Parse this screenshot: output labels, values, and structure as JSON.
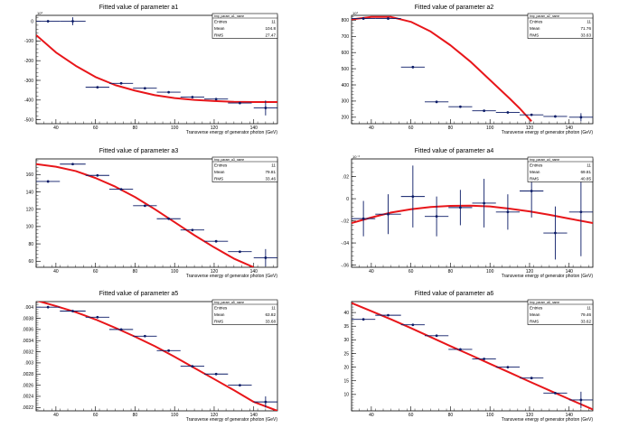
{
  "xlabel": "Transverse energy of generator photon (GeV)",
  "stats_labels": [
    "Entries",
    "Mean",
    "RMS"
  ],
  "colors": {
    "fit": "#e8161a",
    "points": "#0a1a66",
    "frame": "#000000"
  },
  "chart_data": [
    {
      "type": "scatter",
      "title": "Fitted value of parameter a1",
      "stats": {
        "title": "tmp_param_a1_name",
        "entries": "11",
        "mean": "104.8",
        "rms": "27.47"
      },
      "xlim": [
        30,
        152
      ],
      "ylim": [
        -520,
        30
      ],
      "exponent": "10³",
      "yticks": [
        0,
        -100,
        -200,
        -300,
        -400,
        -500
      ],
      "xticks": [
        40,
        60,
        80,
        100,
        120,
        140
      ],
      "points": [
        {
          "x": 36,
          "xerr": 6,
          "y": 0,
          "yerr": 0
        },
        {
          "x": 48.5,
          "xerr": 6.5,
          "y": 0,
          "yerr": 20
        },
        {
          "x": 61,
          "xerr": 6,
          "y": -335,
          "yerr": 0
        },
        {
          "x": 73,
          "xerr": 6,
          "y": -315,
          "yerr": 0
        },
        {
          "x": 85,
          "xerr": 6,
          "y": -340,
          "yerr": 0
        },
        {
          "x": 97,
          "xerr": 6,
          "y": -360,
          "yerr": 0
        },
        {
          "x": 109,
          "xerr": 6,
          "y": -385,
          "yerr": 0
        },
        {
          "x": 121,
          "xerr": 6,
          "y": -395,
          "yerr": 0
        },
        {
          "x": 133,
          "xerr": 6,
          "y": -415,
          "yerr": 0
        },
        {
          "x": 146,
          "xerr": 6,
          "y": -440,
          "yerr": 38
        }
      ],
      "fit": [
        [
          30,
          -70
        ],
        [
          40,
          -158
        ],
        [
          50,
          -226
        ],
        [
          60,
          -283
        ],
        [
          70,
          -324
        ],
        [
          80,
          -352
        ],
        [
          90,
          -375
        ],
        [
          100,
          -390
        ],
        [
          110,
          -399
        ],
        [
          120,
          -405
        ],
        [
          130,
          -409
        ],
        [
          140,
          -410
        ],
        [
          152,
          -410
        ]
      ]
    },
    {
      "type": "scatter",
      "title": "Fitted value of parameter a2",
      "stats": {
        "title": "tmp_param_a2_name",
        "entries": "11",
        "mean": "71.76",
        "rms": "33.63"
      },
      "xlim": [
        30,
        152
      ],
      "ylim": [
        160,
        830
      ],
      "exponent": "10³",
      "yticks": [
        200,
        300,
        400,
        500,
        600,
        700,
        800
      ],
      "xticks": [
        40,
        60,
        80,
        100,
        120,
        140
      ],
      "points": [
        {
          "x": 36,
          "xerr": 6,
          "y": 810,
          "yerr": 0
        },
        {
          "x": 48.5,
          "xerr": 6.5,
          "y": 810,
          "yerr": 0
        },
        {
          "x": 61,
          "xerr": 6,
          "y": 510,
          "yerr": 0
        },
        {
          "x": 73,
          "xerr": 6,
          "y": 295,
          "yerr": 0
        },
        {
          "x": 85,
          "xerr": 6,
          "y": 265,
          "yerr": 0
        },
        {
          "x": 97,
          "xerr": 6,
          "y": 240,
          "yerr": 0
        },
        {
          "x": 109,
          "xerr": 6,
          "y": 230,
          "yerr": 0
        },
        {
          "x": 121,
          "xerr": 6,
          "y": 215,
          "yerr": 0
        },
        {
          "x": 133,
          "xerr": 6,
          "y": 205,
          "yerr": 0
        },
        {
          "x": 146,
          "xerr": 6,
          "y": 200,
          "yerr": 25
        }
      ],
      "fit": [
        [
          30,
          805
        ],
        [
          40,
          820
        ],
        [
          50,
          820
        ],
        [
          60,
          790
        ],
        [
          70,
          730
        ],
        [
          80,
          645
        ],
        [
          90,
          545
        ],
        [
          100,
          430
        ],
        [
          110,
          315
        ],
        [
          115,
          255
        ],
        [
          121,
          175
        ]
      ]
    },
    {
      "type": "scatter",
      "title": "Fitted value of parameter a3",
      "stats": {
        "title": "tmp_param_a3_name",
        "entries": "11",
        "mean": "79.81",
        "rms": "33.46"
      },
      "xlim": [
        30,
        152
      ],
      "ylim": [
        53,
        178
      ],
      "exponent": "",
      "yticks": [
        60,
        80,
        100,
        120,
        140,
        160
      ],
      "xticks": [
        40,
        60,
        80,
        100,
        120,
        140
      ],
      "points": [
        {
          "x": 36,
          "xerr": 6,
          "y": 152,
          "yerr": 0
        },
        {
          "x": 48.5,
          "xerr": 6.5,
          "y": 172,
          "yerr": 0
        },
        {
          "x": 61,
          "xerr": 6,
          "y": 159,
          "yerr": 0
        },
        {
          "x": 73,
          "xerr": 6,
          "y": 143,
          "yerr": 0
        },
        {
          "x": 85,
          "xerr": 6,
          "y": 124,
          "yerr": 0
        },
        {
          "x": 97,
          "xerr": 6,
          "y": 109,
          "yerr": 0
        },
        {
          "x": 109,
          "xerr": 6,
          "y": 96,
          "yerr": 0
        },
        {
          "x": 121,
          "xerr": 6,
          "y": 83,
          "yerr": 0
        },
        {
          "x": 133,
          "xerr": 6,
          "y": 71,
          "yerr": 0
        },
        {
          "x": 146,
          "xerr": 6,
          "y": 64,
          "yerr": 10
        }
      ],
      "fit": [
        [
          30,
          172
        ],
        [
          40,
          169
        ],
        [
          50,
          164
        ],
        [
          60,
          156
        ],
        [
          70,
          146
        ],
        [
          80,
          134
        ],
        [
          90,
          120
        ],
        [
          100,
          105
        ],
        [
          110,
          90
        ],
        [
          120,
          76
        ],
        [
          130,
          63
        ],
        [
          140,
          53
        ]
      ]
    },
    {
      "type": "scatter",
      "title": "Fitted value of parameter a4",
      "stats": {
        "title": "tmp_param_a4_name",
        "entries": "11",
        "mean": "69.81",
        "rms": "40.85"
      },
      "xlim": [
        30,
        152
      ],
      "ylim": [
        -0.062,
        0.036
      ],
      "exponent": "10⁻³",
      "yticks": [
        -0.06,
        -0.04,
        -0.02,
        0,
        0.02
      ],
      "xticks": [
        40,
        60,
        80,
        100,
        120,
        140
      ],
      "points": [
        {
          "x": 36,
          "xerr": 6,
          "y": -0.018,
          "yerr": 0.016
        },
        {
          "x": 48.5,
          "xerr": 6.5,
          "y": -0.014,
          "yerr": 0.018
        },
        {
          "x": 61,
          "xerr": 6,
          "y": 0.002,
          "yerr": 0.028
        },
        {
          "x": 73,
          "xerr": 6,
          "y": -0.016,
          "yerr": 0.018
        },
        {
          "x": 85,
          "xerr": 6,
          "y": -0.008,
          "yerr": 0.016
        },
        {
          "x": 97,
          "xerr": 6,
          "y": -0.004,
          "yerr": 0.022
        },
        {
          "x": 109,
          "xerr": 6,
          "y": -0.012,
          "yerr": 0.016
        },
        {
          "x": 121,
          "xerr": 6,
          "y": 0.007,
          "yerr": 0.024
        },
        {
          "x": 133,
          "xerr": 6,
          "y": -0.031,
          "yerr": 0.024
        },
        {
          "x": 146,
          "xerr": 6,
          "y": -0.012,
          "yerr": 0.04
        }
      ],
      "fit": [
        [
          30,
          -0.022
        ],
        [
          40,
          -0.017
        ],
        [
          50,
          -0.0125
        ],
        [
          60,
          -0.0095
        ],
        [
          70,
          -0.0075
        ],
        [
          80,
          -0.0065
        ],
        [
          90,
          -0.0063
        ],
        [
          100,
          -0.007
        ],
        [
          110,
          -0.009
        ],
        [
          120,
          -0.0115
        ],
        [
          130,
          -0.0145
        ],
        [
          140,
          -0.018
        ],
        [
          152,
          -0.022
        ]
      ]
    },
    {
      "type": "scatter",
      "title": "Fitted value of parameter a5",
      "stats": {
        "title": "tmp_param_a5_name",
        "entries": "11",
        "mean": "63.82",
        "rms": "33.68"
      },
      "xlim": [
        30,
        152
      ],
      "ylim": [
        0.00214,
        0.0041
      ],
      "exponent": "",
      "yticks": [
        0.0022,
        0.0024,
        0.0026,
        0.0028,
        0.003,
        0.0032,
        0.0034,
        0.0036,
        0.0038,
        0.004
      ],
      "xticks": [
        40,
        60,
        80,
        100,
        120,
        140
      ],
      "points": [
        {
          "x": 36,
          "xerr": 6,
          "y": 0.004,
          "yerr": 0
        },
        {
          "x": 48.5,
          "xerr": 6.5,
          "y": 0.00393,
          "yerr": 0
        },
        {
          "x": 61,
          "xerr": 6,
          "y": 0.00382,
          "yerr": 0
        },
        {
          "x": 73,
          "xerr": 6,
          "y": 0.0036,
          "yerr": 0
        },
        {
          "x": 85,
          "xerr": 6,
          "y": 0.00348,
          "yerr": 0
        },
        {
          "x": 97,
          "xerr": 6,
          "y": 0.00322,
          "yerr": 0
        },
        {
          "x": 109,
          "xerr": 6,
          "y": 0.00294,
          "yerr": 0
        },
        {
          "x": 121,
          "xerr": 6,
          "y": 0.0028,
          "yerr": 0
        },
        {
          "x": 133,
          "xerr": 6,
          "y": 0.0026,
          "yerr": 0
        },
        {
          "x": 146,
          "xerr": 6,
          "y": 0.0023,
          "yerr": 0.0001
        }
      ],
      "fit": [
        [
          30,
          0.00412
        ],
        [
          40,
          0.00402
        ],
        [
          50,
          0.00391
        ],
        [
          60,
          0.00378
        ],
        [
          70,
          0.00363
        ],
        [
          80,
          0.00347
        ],
        [
          90,
          0.0033
        ],
        [
          100,
          0.00311
        ],
        [
          110,
          0.00291
        ],
        [
          120,
          0.00271
        ],
        [
          130,
          0.00251
        ],
        [
          140,
          0.0023
        ],
        [
          152,
          0.00214
        ]
      ]
    },
    {
      "type": "scatter",
      "title": "Fitted value of parameter a6",
      "stats": {
        "title": "tmp_param_a6_name",
        "entries": "11",
        "mean": "79.46",
        "rms": "33.62"
      },
      "xlim": [
        30,
        152
      ],
      "ylim": [
        4,
        44
      ],
      "exponent": "",
      "yticks": [
        10,
        15,
        20,
        25,
        30,
        35,
        40
      ],
      "xticks": [
        40,
        60,
        80,
        100,
        120,
        140
      ],
      "points": [
        {
          "x": 36,
          "xerr": 6,
          "y": 37.5,
          "yerr": 0
        },
        {
          "x": 48.5,
          "xerr": 6.5,
          "y": 39,
          "yerr": 0
        },
        {
          "x": 61,
          "xerr": 6,
          "y": 35.5,
          "yerr": 0
        },
        {
          "x": 73,
          "xerr": 6,
          "y": 31.5,
          "yerr": 0
        },
        {
          "x": 85,
          "xerr": 6,
          "y": 26.5,
          "yerr": 0
        },
        {
          "x": 97,
          "xerr": 6,
          "y": 23,
          "yerr": 0
        },
        {
          "x": 109,
          "xerr": 6,
          "y": 20,
          "yerr": 0
        },
        {
          "x": 121,
          "xerr": 6,
          "y": 16,
          "yerr": 0
        },
        {
          "x": 133,
          "xerr": 6,
          "y": 10.5,
          "yerr": 0
        },
        {
          "x": 146,
          "xerr": 6,
          "y": 8,
          "yerr": 3
        }
      ],
      "fit": [
        [
          30,
          43.5
        ],
        [
          40,
          40.5
        ],
        [
          50,
          37.5
        ],
        [
          60,
          34.3
        ],
        [
          70,
          31
        ],
        [
          80,
          27.7
        ],
        [
          90,
          24.5
        ],
        [
          100,
          21.2
        ],
        [
          110,
          18
        ],
        [
          120,
          14.7
        ],
        [
          130,
          11.5
        ],
        [
          140,
          8.3
        ],
        [
          152,
          4.5
        ]
      ]
    }
  ]
}
